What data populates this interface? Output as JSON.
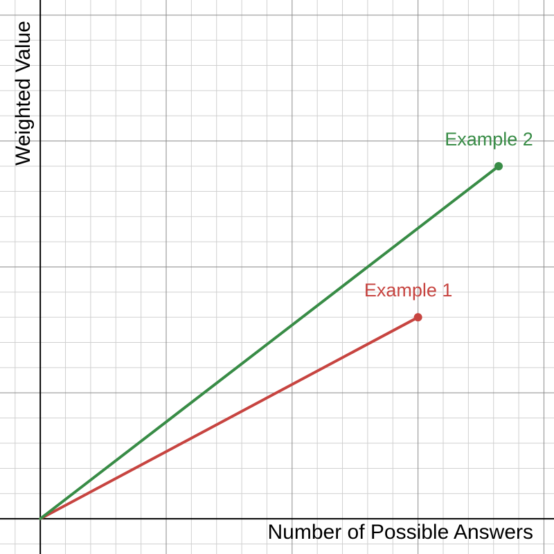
{
  "chart_data": {
    "type": "line",
    "title": "",
    "xlabel": "Number of Possible Answers",
    "ylabel": "Weighted Value",
    "grid": true,
    "xlim": [
      -0.8,
      10.2
    ],
    "ylim": [
      -0.7,
      10.3
    ],
    "minor_step": 0.5,
    "major_step": 2.5,
    "show_tick_labels": false,
    "series": [
      {
        "name": "Example 1",
        "color": "#c74440",
        "x": [
          0,
          7.5
        ],
        "y": [
          0,
          4
        ],
        "endpoint_marker": true
      },
      {
        "name": "Example 2",
        "color": "#388c46",
        "x": [
          0,
          9.1
        ],
        "y": [
          0,
          7
        ],
        "endpoint_marker": true
      }
    ]
  }
}
